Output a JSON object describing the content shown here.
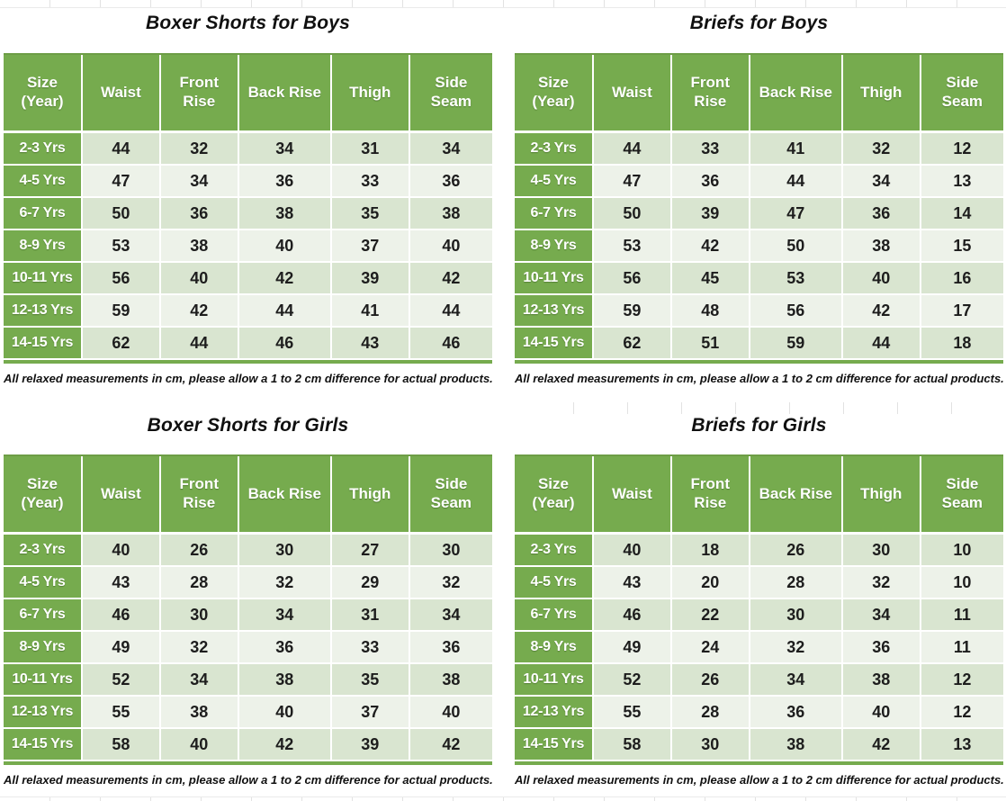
{
  "colors": {
    "green": "#76ab4e",
    "greenEdge": "#6d9d46",
    "rowDark": "#d9e5d0",
    "rowLight": "#edf2e9",
    "ink": "#1d1d1d",
    "gridline": "#e2e2e2"
  },
  "footnote": "All relaxed measurements in cm, please allow a 1 to 2 cm difference for actual products.",
  "columns": [
    "Size (Year)",
    "Waist",
    "Front Rise",
    "Back Rise",
    "Thigh",
    "Side Seam"
  ],
  "tables": [
    {
      "title": "Boxer Shorts for Boys",
      "rows": [
        {
          "size": "2-3 Yrs",
          "values": [
            44,
            32,
            34,
            31,
            34
          ]
        },
        {
          "size": "4-5 Yrs",
          "values": [
            47,
            34,
            36,
            33,
            36
          ]
        },
        {
          "size": "6-7 Yrs",
          "values": [
            50,
            36,
            38,
            35,
            38
          ]
        },
        {
          "size": "8-9 Yrs",
          "values": [
            53,
            38,
            40,
            37,
            40
          ]
        },
        {
          "size": "10-11 Yrs",
          "values": [
            56,
            40,
            42,
            39,
            42
          ]
        },
        {
          "size": "12-13 Yrs",
          "values": [
            59,
            42,
            44,
            41,
            44
          ]
        },
        {
          "size": "14-15 Yrs",
          "values": [
            62,
            44,
            46,
            43,
            46
          ]
        }
      ]
    },
    {
      "title": "Briefs for Boys",
      "rows": [
        {
          "size": "2-3 Yrs",
          "values": [
            44,
            33,
            41,
            32,
            12
          ]
        },
        {
          "size": "4-5 Yrs",
          "values": [
            47,
            36,
            44,
            34,
            13
          ]
        },
        {
          "size": "6-7 Yrs",
          "values": [
            50,
            39,
            47,
            36,
            14
          ]
        },
        {
          "size": "8-9 Yrs",
          "values": [
            53,
            42,
            50,
            38,
            15
          ]
        },
        {
          "size": "10-11 Yrs",
          "values": [
            56,
            45,
            53,
            40,
            16
          ]
        },
        {
          "size": "12-13 Yrs",
          "values": [
            59,
            48,
            56,
            42,
            17
          ]
        },
        {
          "size": "14-15 Yrs",
          "values": [
            62,
            51,
            59,
            44,
            18
          ]
        }
      ]
    },
    {
      "title": "Boxer Shorts for Girls",
      "rows": [
        {
          "size": "2-3 Yrs",
          "values": [
            40,
            26,
            30,
            27,
            30
          ]
        },
        {
          "size": "4-5 Yrs",
          "values": [
            43,
            28,
            32,
            29,
            32
          ]
        },
        {
          "size": "6-7 Yrs",
          "values": [
            46,
            30,
            34,
            31,
            34
          ]
        },
        {
          "size": "8-9 Yrs",
          "values": [
            49,
            32,
            36,
            33,
            36
          ]
        },
        {
          "size": "10-11 Yrs",
          "values": [
            52,
            34,
            38,
            35,
            38
          ]
        },
        {
          "size": "12-13 Yrs",
          "values": [
            55,
            38,
            40,
            37,
            40
          ]
        },
        {
          "size": "14-15 Yrs",
          "values": [
            58,
            40,
            42,
            39,
            42
          ]
        }
      ]
    },
    {
      "title": "Briefs for Girls",
      "rows": [
        {
          "size": "2-3 Yrs",
          "values": [
            40,
            18,
            26,
            30,
            10
          ]
        },
        {
          "size": "4-5 Yrs",
          "values": [
            43,
            20,
            28,
            32,
            10
          ]
        },
        {
          "size": "6-7 Yrs",
          "values": [
            46,
            22,
            30,
            34,
            11
          ]
        },
        {
          "size": "8-9 Yrs",
          "values": [
            49,
            24,
            32,
            36,
            11
          ]
        },
        {
          "size": "10-11 Yrs",
          "values": [
            52,
            26,
            34,
            38,
            12
          ]
        },
        {
          "size": "12-13 Yrs",
          "values": [
            55,
            28,
            36,
            40,
            12
          ]
        },
        {
          "size": "14-15 Yrs",
          "values": [
            58,
            30,
            38,
            42,
            13
          ]
        }
      ]
    }
  ]
}
